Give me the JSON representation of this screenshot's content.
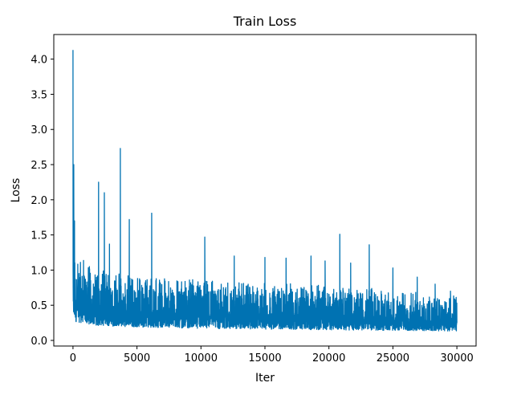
{
  "chart_data": {
    "type": "line",
    "title": "Train Loss",
    "xlabel": "Iter",
    "ylabel": "Loss",
    "xlim": [
      -1500,
      31500
    ],
    "ylim": [
      -0.08,
      4.35
    ],
    "x_ticks": [
      0,
      5000,
      10000,
      15000,
      20000,
      25000,
      30000
    ],
    "x_tick_labels": [
      "0",
      "5000",
      "10000",
      "15000",
      "20000",
      "25000",
      "30000"
    ],
    "y_ticks": [
      0.0,
      0.5,
      1.0,
      1.5,
      2.0,
      2.5,
      3.0,
      3.5,
      4.0
    ],
    "y_tick_labels": [
      "0.0",
      "0.5",
      "1.0",
      "1.5",
      "2.0",
      "2.5",
      "3.0",
      "3.5",
      "4.0"
    ],
    "grid": false,
    "legend": "none",
    "series_color": "#0072b2",
    "series": [
      {
        "iterations": [
          0,
          30000
        ],
        "peaks": [
          {
            "x": 0,
            "y": 4.13
          },
          {
            "x": 60,
            "y": 2.5
          },
          {
            "x": 120,
            "y": 1.7
          },
          {
            "x": 2000,
            "y": 2.25
          },
          {
            "x": 2450,
            "y": 2.1
          },
          {
            "x": 2850,
            "y": 1.37
          },
          {
            "x": 3700,
            "y": 2.73
          },
          {
            "x": 4400,
            "y": 1.72
          },
          {
            "x": 6150,
            "y": 1.81
          },
          {
            "x": 10300,
            "y": 1.47
          },
          {
            "x": 12600,
            "y": 1.2
          },
          {
            "x": 15000,
            "y": 1.18
          },
          {
            "x": 16650,
            "y": 1.17
          },
          {
            "x": 18600,
            "y": 1.2
          },
          {
            "x": 19700,
            "y": 1.13
          },
          {
            "x": 20850,
            "y": 1.51
          },
          {
            "x": 21700,
            "y": 1.1
          },
          {
            "x": 23150,
            "y": 1.36
          },
          {
            "x": 25000,
            "y": 1.03
          },
          {
            "x": 26900,
            "y": 0.9
          },
          {
            "x": 28300,
            "y": 0.8
          },
          {
            "x": 29500,
            "y": 0.7
          }
        ],
        "envelope": {
          "x": [
            0,
            2000,
            5000,
            10000,
            15000,
            20000,
            25000,
            30000
          ],
          "upper": [
            1.0,
            0.8,
            0.72,
            0.68,
            0.65,
            0.62,
            0.57,
            0.5
          ],
          "lower": [
            0.27,
            0.21,
            0.19,
            0.17,
            0.16,
            0.15,
            0.14,
            0.13
          ]
        }
      }
    ]
  }
}
